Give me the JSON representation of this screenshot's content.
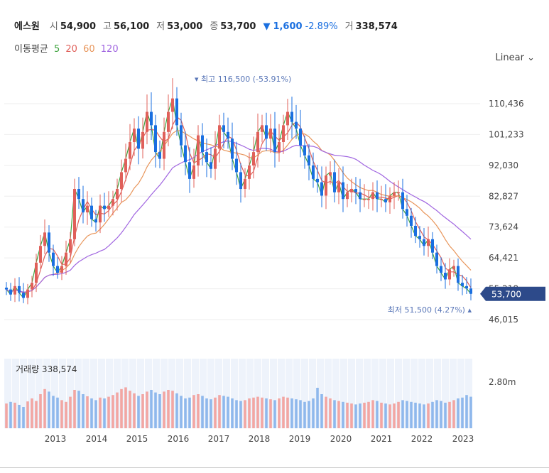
{
  "header": {
    "name": "에스원",
    "open_label": "시",
    "open": "54,900",
    "high_label": "고",
    "high": "56,100",
    "low_label": "저",
    "low": "53,000",
    "close_label": "종",
    "close": "53,700",
    "change": "1,600",
    "change_pct": "-2.89%",
    "volume_label": "거",
    "volume": "338,574",
    "down_color": "#1a6fe0"
  },
  "moving_average": {
    "label": "이동평균",
    "periods": [
      {
        "period": "5",
        "color": "#3fa33f"
      },
      {
        "period": "20",
        "color": "#e0605a"
      },
      {
        "period": "60",
        "color": "#e8955a"
      },
      {
        "period": "120",
        "color": "#a065e0"
      }
    ]
  },
  "scale_selector": {
    "label": "Linear",
    "icon": "chevron-down-icon"
  },
  "volume_panel": {
    "label": "거래량",
    "value": "338,574",
    "tick": "2.80m"
  },
  "chart_data": {
    "type": "candlestick",
    "y_ticks": [
      "110,436",
      "101,233",
      "92,030",
      "82,827",
      "73,624",
      "64,421",
      "55,218",
      "46,015"
    ],
    "y_tick_values": [
      110436,
      101233,
      92030,
      82827,
      73624,
      64421,
      55218,
      46015
    ],
    "x_ticks": [
      "2013",
      "2014",
      "2015",
      "2016",
      "2017",
      "2018",
      "2019",
      "2020",
      "2021",
      "2022",
      "2023"
    ],
    "last_price_label": "53,700",
    "last_price": 53700,
    "max_annotation": {
      "text": "최고 116,500 (-53.91%)",
      "value": 116500
    },
    "min_annotation": {
      "text": "최저 51,500 (4.27%)",
      "value": 51500
    },
    "colors": {
      "up": "#e0605a",
      "down": "#1a6fe0"
    },
    "monthly_closes": [
      55000,
      53500,
      56000,
      54000,
      52500,
      55000,
      57000,
      63000,
      68000,
      72000,
      66000,
      62000,
      60000,
      62000,
      66000,
      70000,
      85000,
      82000,
      78000,
      80000,
      76000,
      75000,
      80000,
      79000,
      80000,
      82000,
      85000,
      90000,
      94000,
      99000,
      103000,
      97000,
      102000,
      108000,
      104000,
      96000,
      94000,
      102000,
      108000,
      112000,
      104000,
      98000,
      93000,
      88000,
      92000,
      101000,
      96000,
      93000,
      91000,
      97000,
      104000,
      102000,
      100000,
      94000,
      90000,
      85000,
      88000,
      92000,
      96000,
      102000,
      104000,
      100000,
      103000,
      96000,
      99000,
      104000,
      108000,
      105000,
      103000,
      98000,
      95000,
      92000,
      88000,
      87000,
      83000,
      89000,
      90000,
      84000,
      87000,
      82000,
      84000,
      85000,
      84000,
      82000,
      82000,
      82000,
      84000,
      82000,
      82000,
      81000,
      83000,
      84000,
      84000,
      79000,
      77000,
      74000,
      71000,
      70000,
      68000,
      70000,
      66000,
      62000,
      60000,
      58000,
      61000,
      62000,
      57000,
      56000,
      55300,
      53700
    ],
    "monthly_volume": [
      0.58,
      0.62,
      0.6,
      0.55,
      0.5,
      0.63,
      0.7,
      0.64,
      0.8,
      0.92,
      0.86,
      0.76,
      0.72,
      0.66,
      0.62,
      0.74,
      0.9,
      0.88,
      0.8,
      0.75,
      0.7,
      0.66,
      0.72,
      0.7,
      0.74,
      0.78,
      0.84,
      0.92,
      0.96,
      0.88,
      0.82,
      0.76,
      0.8,
      0.86,
      0.9,
      0.84,
      0.8,
      0.86,
      0.9,
      0.88,
      0.82,
      0.76,
      0.7,
      0.72,
      0.78,
      0.8,
      0.76,
      0.7,
      0.68,
      0.72,
      0.78,
      0.76,
      0.74,
      0.7,
      0.66,
      0.64,
      0.66,
      0.7,
      0.72,
      0.74,
      0.72,
      0.7,
      0.68,
      0.66,
      0.7,
      0.74,
      0.72,
      0.7,
      0.68,
      0.66,
      0.62,
      0.64,
      0.7,
      0.95,
      0.8,
      0.74,
      0.7,
      0.66,
      0.64,
      0.62,
      0.6,
      0.58,
      0.56,
      0.58,
      0.6,
      0.62,
      0.66,
      0.64,
      0.6,
      0.58,
      0.56,
      0.58,
      0.62,
      0.66,
      0.64,
      0.62,
      0.6,
      0.58,
      0.56,
      0.58,
      0.62,
      0.66,
      0.64,
      0.6,
      0.62,
      0.66,
      0.7,
      0.72,
      0.78,
      0.74
    ]
  }
}
